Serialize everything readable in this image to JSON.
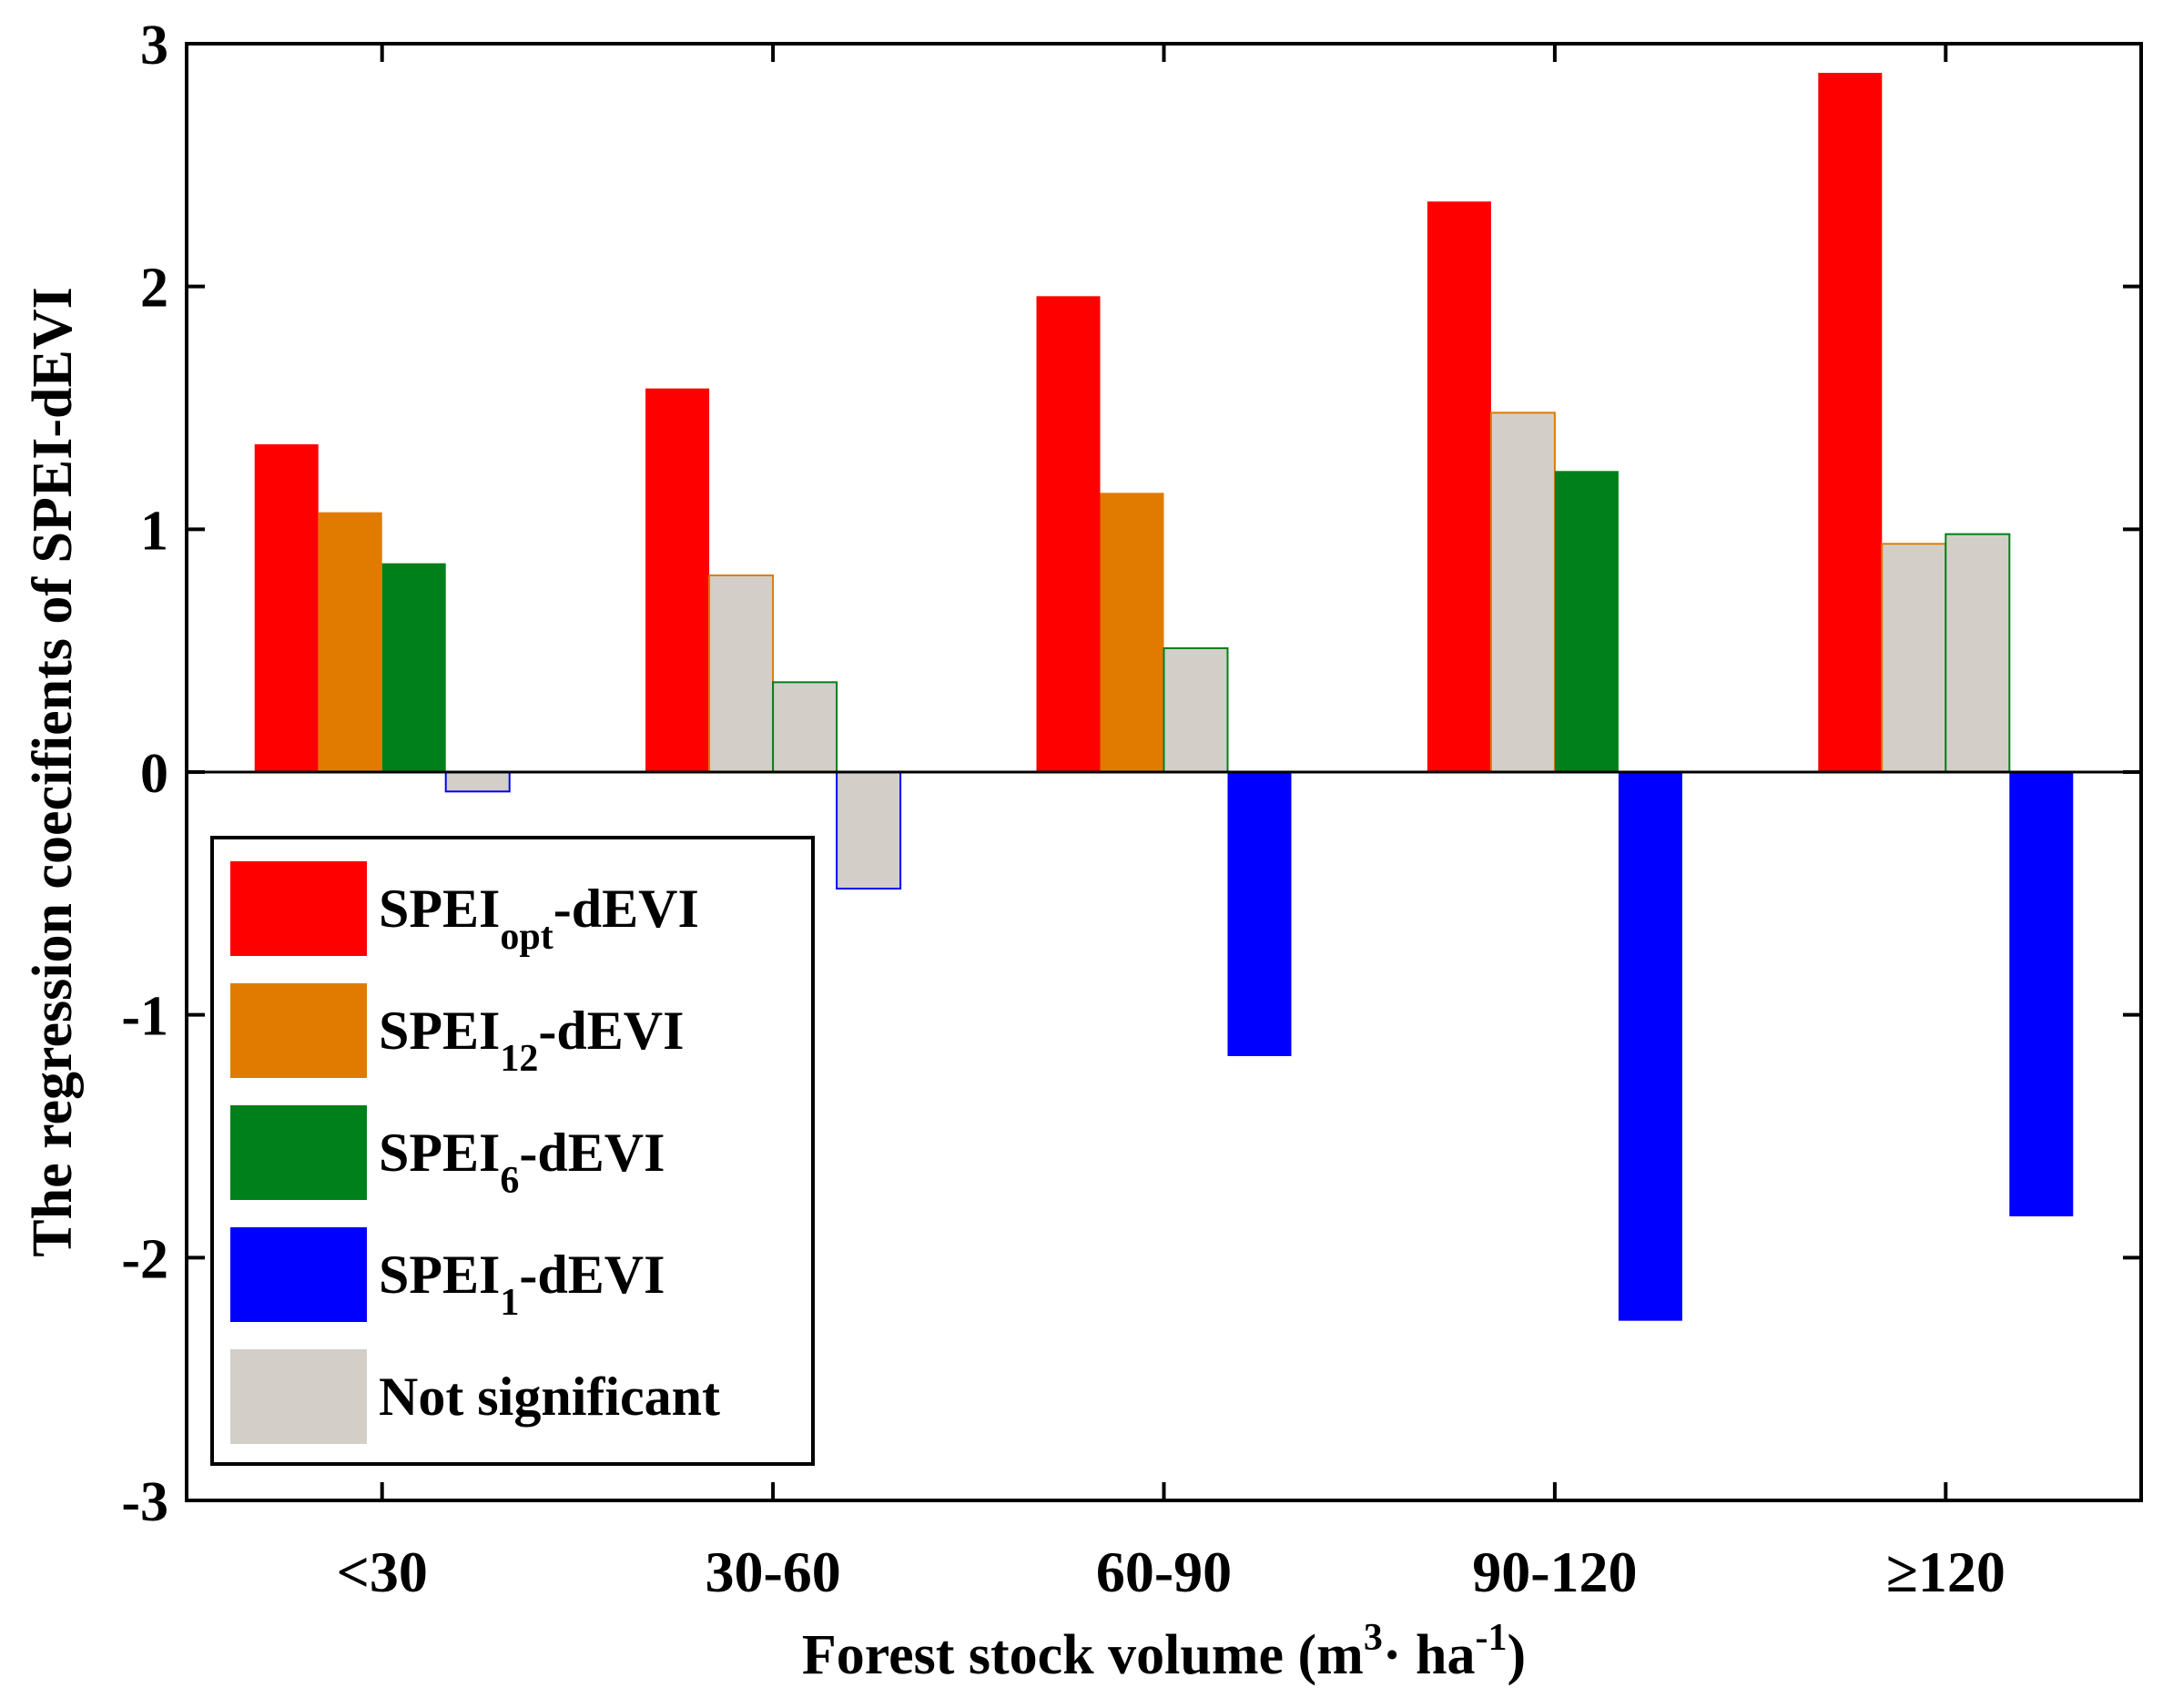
{
  "chart_data": {
    "type": "bar",
    "title": "",
    "ylabel": "The regression coecifients of SPEI-dEVI",
    "xlabel": {
      "prefix": "Forest stock volume (m",
      "sup1": "3",
      "middle": "· ha",
      "sup2": "-1",
      "suffix": ")"
    },
    "categories": [
      "<30",
      "30-60",
      "60-90",
      "90-120",
      "≥120"
    ],
    "ylim": [
      -3,
      3
    ],
    "yticks": [
      -3,
      -2,
      -1,
      0,
      1,
      2,
      3
    ],
    "ytick_labels": [
      "-3",
      "-2",
      "-1",
      "0",
      "1",
      "2",
      "3"
    ],
    "series": [
      {
        "name": "SPEIopt-dEVI",
        "color": "#ff0000",
        "values": [
          1.35,
          1.58,
          1.96,
          2.35,
          2.88
        ],
        "significant": [
          true,
          true,
          true,
          true,
          true
        ]
      },
      {
        "name": "SPEI12-dEVI",
        "color": "#e07b00",
        "values": [
          1.07,
          0.81,
          1.15,
          1.48,
          0.94
        ],
        "significant": [
          true,
          false,
          true,
          false,
          false
        ]
      },
      {
        "name": "SPEI6-dEVI",
        "color": "#00801a",
        "values": [
          0.86,
          0.37,
          0.51,
          1.24,
          0.98
        ],
        "significant": [
          true,
          false,
          false,
          true,
          false
        ]
      },
      {
        "name": "SPEI1-dEVI",
        "color": "#0000ff",
        "values": [
          -0.08,
          -0.48,
          -1.17,
          -2.26,
          -1.83
        ],
        "significant": [
          false,
          false,
          true,
          true,
          true
        ]
      }
    ],
    "not_significant_color": "#d3cfc8",
    "legend": {
      "placement": "bottom-left",
      "entries": [
        {
          "main": "SPEI",
          "sub": "opt",
          "rest": "-dEVI",
          "color": "#ff0000"
        },
        {
          "main": "SPEI",
          "sub": "12",
          "rest": "-dEVI",
          "color": "#e07b00"
        },
        {
          "main": "SPEI",
          "sub": "6",
          "rest": "-dEVI",
          "color": "#00801a"
        },
        {
          "main": "SPEI",
          "sub": "1",
          "rest": "-dEVI",
          "color": "#0000ff"
        },
        {
          "main": "Not significant",
          "sub": "",
          "rest": "",
          "color": "#d3cfc8"
        }
      ]
    }
  }
}
